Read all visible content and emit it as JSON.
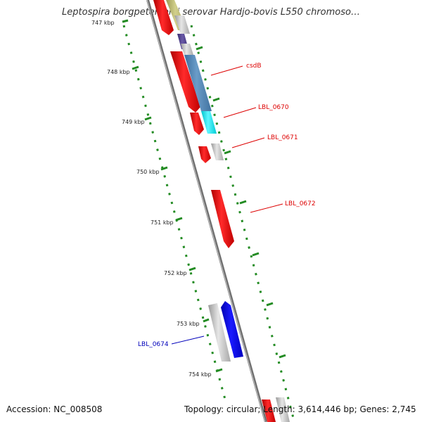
{
  "title": "Leptospira borgpetersenii serovar Hardjo-bovis L550 chromoso…",
  "footer": {
    "accession": "Accession: NC_008508",
    "summary": "Topology: circular; Length: 3,614,446 bp; Genes: 2,745"
  },
  "ticks": [
    {
      "label": "747 kbp"
    },
    {
      "label": "748 kbp"
    },
    {
      "label": "749 kbp"
    },
    {
      "label": "750 kbp"
    },
    {
      "label": "751 kbp"
    },
    {
      "label": "752 kbp"
    },
    {
      "label": "753 kbp"
    },
    {
      "label": "754 kbp"
    }
  ],
  "gene_labels": [
    {
      "name": "csdB",
      "color": "#dd0000"
    },
    {
      "name": "LBL_0670",
      "color": "#dd0000"
    },
    {
      "name": "LBL_0671",
      "color": "#dd0000"
    },
    {
      "name": "LBL_0672",
      "color": "#dd0000"
    },
    {
      "name": "LBL_0674",
      "color": "#0000bb"
    }
  ],
  "colors": {
    "backbone": "#888888",
    "tick": "#228b22",
    "forward_cds": "#ff0000",
    "reverse_cds": "#0000ff",
    "gene": "#bbbbbb",
    "rna": "#4682b4",
    "cyan_feature": "#00e5ee",
    "olive_feature": "#b5b36a",
    "purple_feature": "#4b3c8c"
  }
}
